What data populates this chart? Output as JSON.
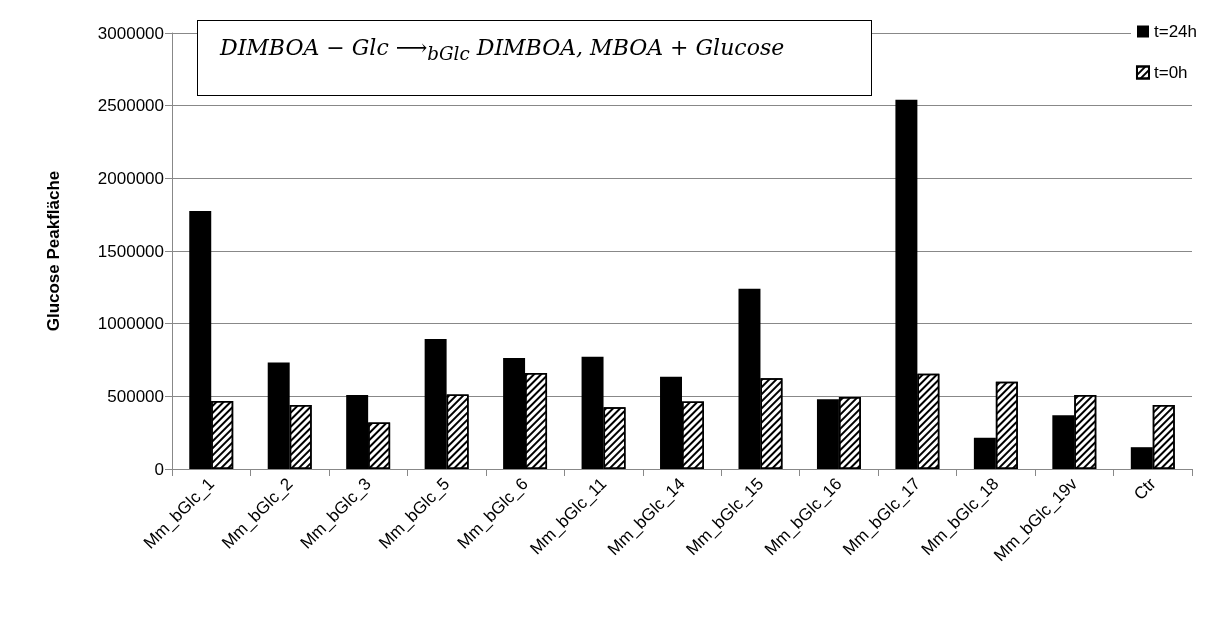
{
  "chart_data": {
    "type": "bar",
    "ylabel": "Glucose Peakfläche",
    "annotations": [
      "DIMBOA − Glc ⟶$_{bGlc}$ DIMBOA, MBOA + Glucose"
    ],
    "categories": [
      "Mm_bGlc_1",
      "Mm_bGlc_2",
      "Mm_bGlc_3",
      "Mm_bGlc_5",
      "Mm_bGlc_6",
      "Mm_bGlc_11",
      "Mm_bGlc_14",
      "Mm_bGlc_15",
      "Mm_bGlc_16",
      "Mm_bGlc_17",
      "Mm_bGlc_18",
      "Mm_bGlc_19v",
      "Ctr"
    ],
    "series": [
      {
        "name": "t=24h",
        "color": "#000000",
        "values": [
          1775000,
          733000,
          509000,
          895000,
          764000,
          772000,
          635000,
          1240000,
          480000,
          2540000,
          215000,
          370000,
          150000
        ]
      },
      {
        "name": "t=0h",
        "color": "#ffffff",
        "values": [
          468000,
          440000,
          320000,
          512000,
          660000,
          425000,
          465000,
          625000,
          495000,
          655000,
          600000,
          510000,
          440000
        ]
      }
    ],
    "ylim": [
      0,
      3000000
    ],
    "yticks": [
      0,
      500000,
      1000000,
      1500000,
      2000000,
      2500000,
      3000000
    ],
    "grid": "y",
    "legend": "top right"
  }
}
